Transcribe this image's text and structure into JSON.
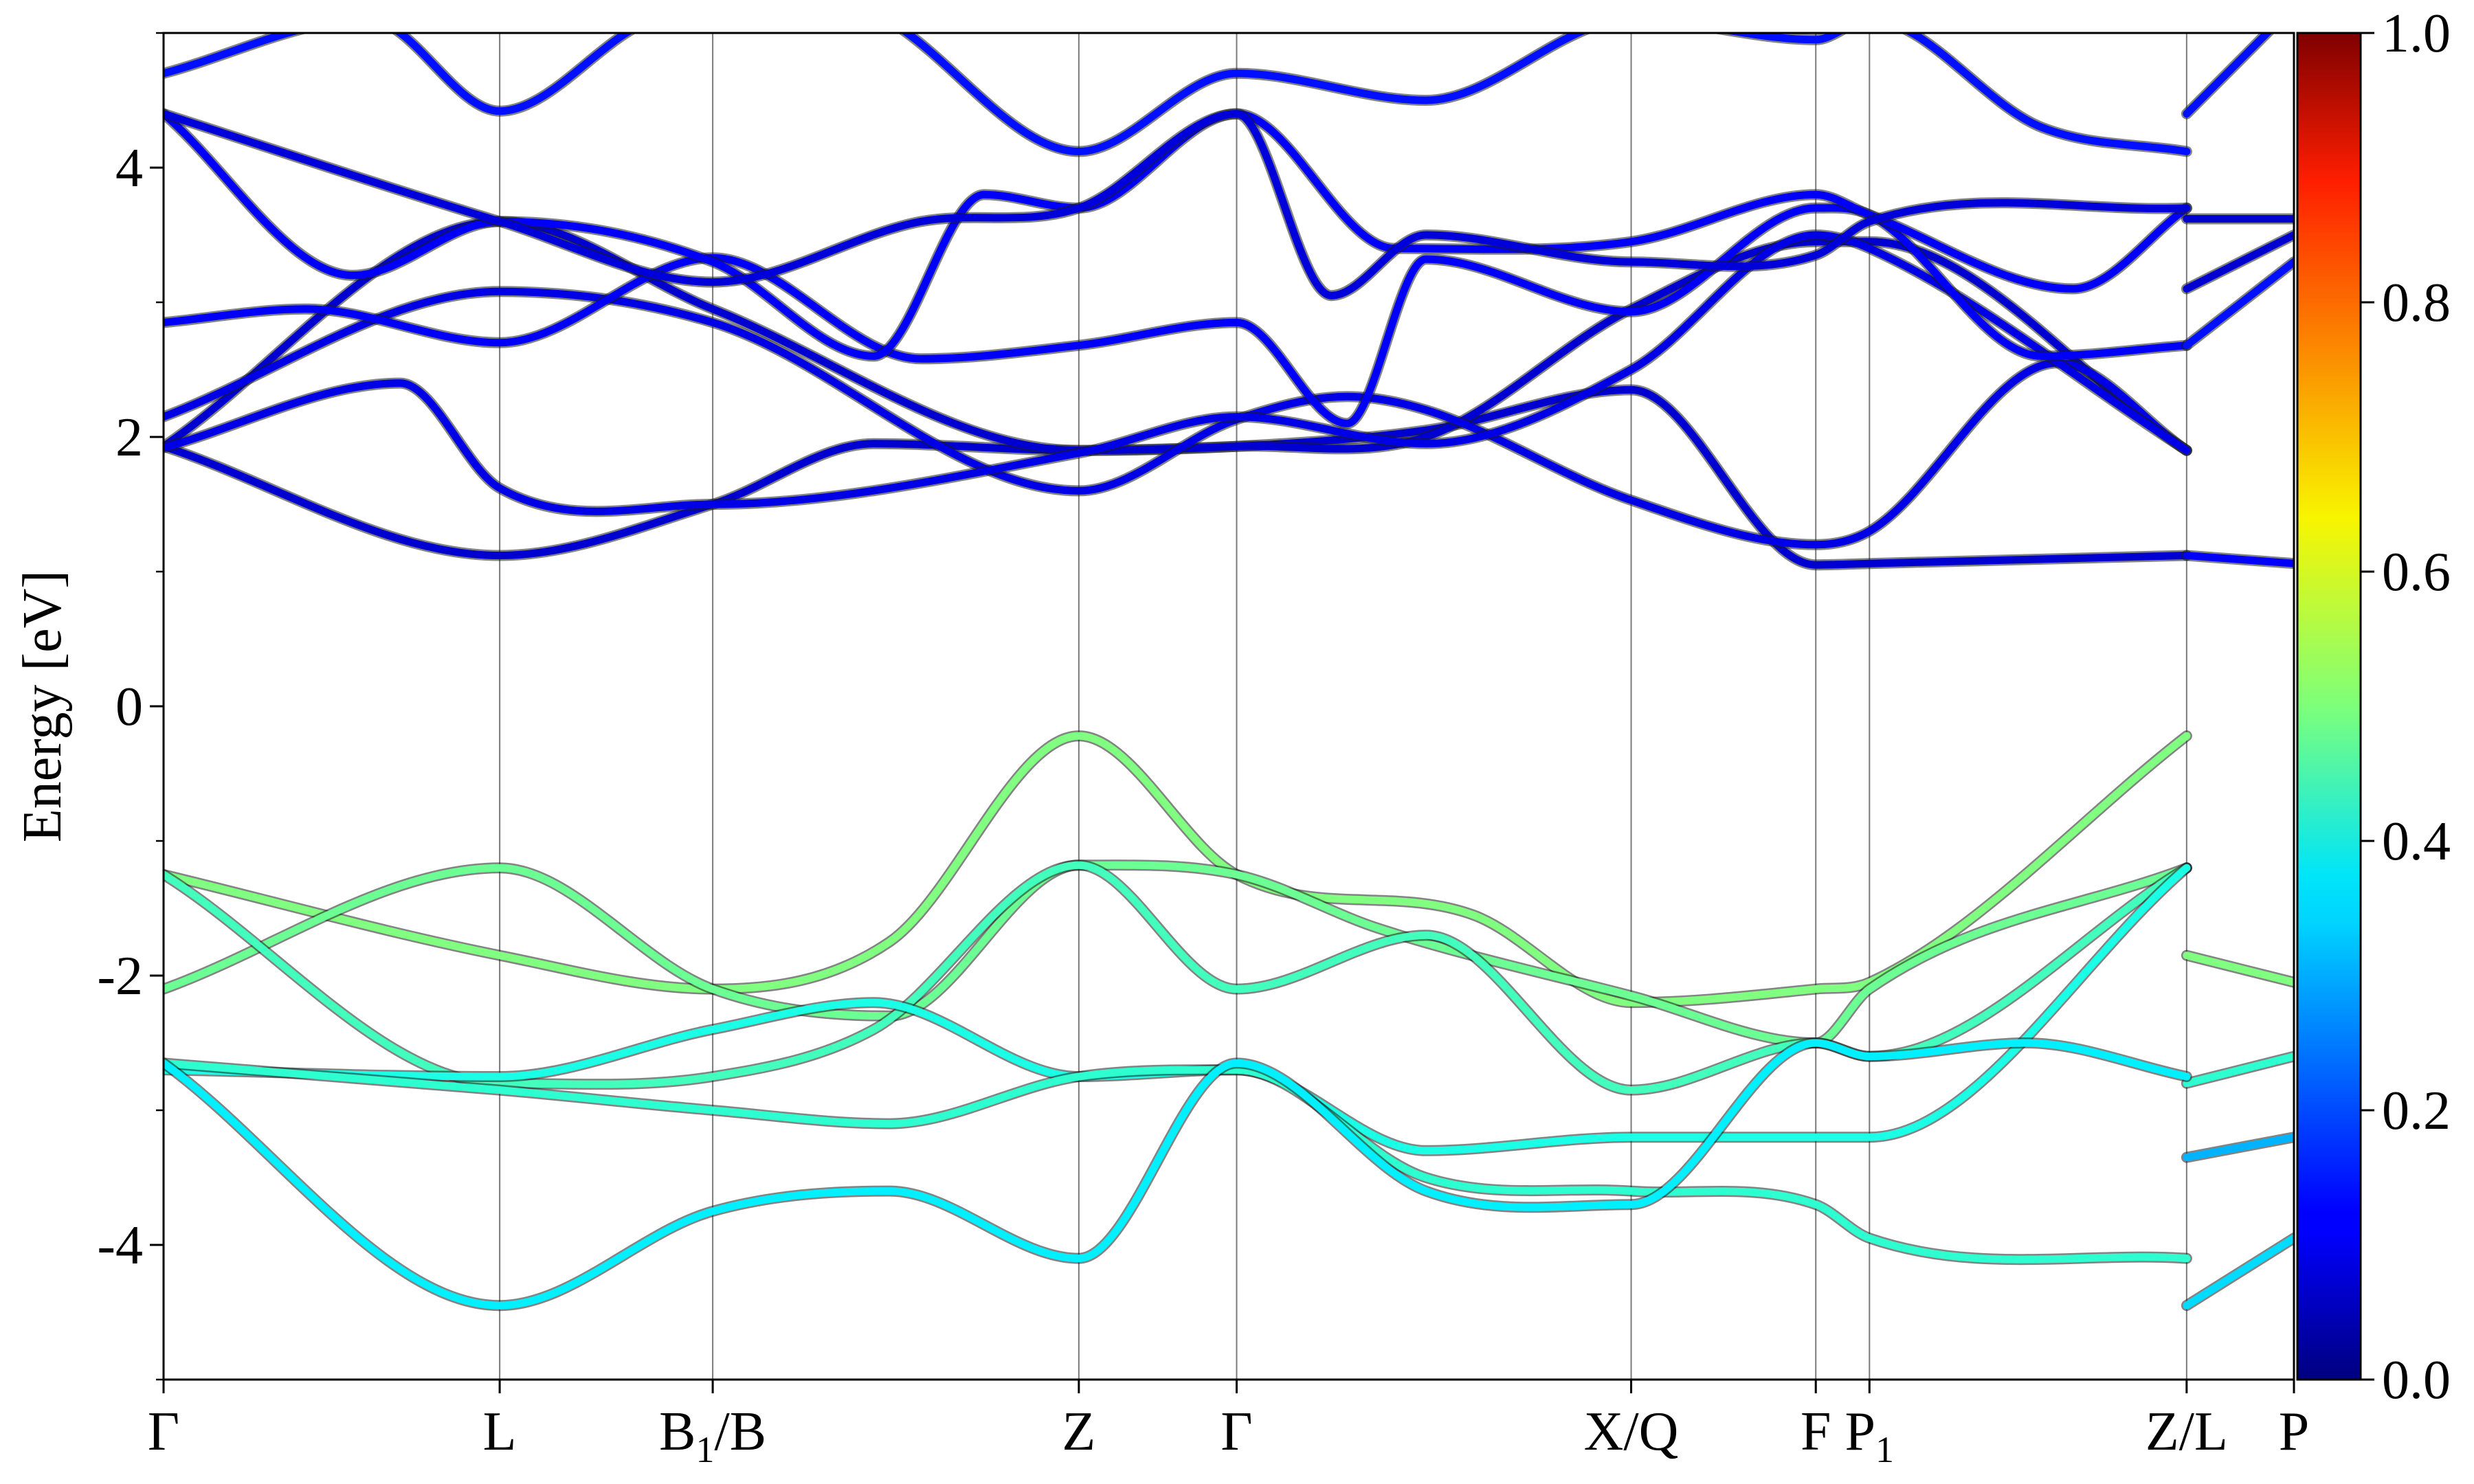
{
  "chart_data": {
    "type": "line",
    "title": "",
    "xlabel": "",
    "ylabel": "Energy [eV]",
    "ylim": [
      -5,
      5
    ],
    "y_ticks": [
      -4,
      -2,
      0,
      2,
      4
    ],
    "y_tick_labels": [
      "-4",
      "-2",
      "0",
      "2",
      "4"
    ],
    "x_range": [
      0,
      13.5
    ],
    "high_symmetry_points": [
      {
        "label": "Γ",
        "sub": "",
        "suffix": "",
        "x": 0.0
      },
      {
        "label": "L",
        "sub": "",
        "suffix": "",
        "x": 2.13
      },
      {
        "label": "B",
        "sub": "1",
        "suffix": "/B",
        "x": 3.48
      },
      {
        "label": "Z",
        "sub": "",
        "suffix": "",
        "x": 5.8
      },
      {
        "label": "Γ",
        "sub": "",
        "suffix": "",
        "x": 6.8
      },
      {
        "label": "X/Q",
        "sub": "",
        "suffix": "",
        "x": 9.3
      },
      {
        "label": "F",
        "sub": "",
        "suffix": "",
        "x": 10.47
      },
      {
        "label": "P",
        "sub": "1",
        "suffix": "",
        "x": 10.81
      },
      {
        "label": "Z/L",
        "sub": "",
        "suffix": "",
        "x": 12.82
      },
      {
        "label": "P",
        "sub": "",
        "suffix": "",
        "x": 13.5
      }
    ],
    "grid": "vertical lines at high-symmetry points",
    "colorbar": {
      "colormap": "jet",
      "range": [
        0.0,
        1.0
      ],
      "ticks": [
        0.0,
        0.2,
        0.4,
        0.6,
        0.8,
        1.0
      ],
      "tick_labels": [
        "0.0",
        "0.2",
        "0.4",
        "0.6",
        "0.8",
        "1.0"
      ]
    },
    "series": [
      {
        "weight": 0.08,
        "x": [
          0,
          2.13,
          3.48,
          4.5,
          5.8,
          6.8,
          8.0,
          9.3,
          10.47,
          10.81,
          12.82
        ],
        "y": [
          1.93,
          1.12,
          1.5,
          1.95,
          1.9,
          1.93,
          2.05,
          2.35,
          1.05,
          1.06,
          1.12
        ]
      },
      {
        "weight": 0.12,
        "x": [
          12.82,
          13.5
        ],
        "y": [
          1.12,
          1.06
        ]
      },
      {
        "weight": 0.08,
        "x": [
          0,
          2.13,
          3.48,
          5.8,
          6.8,
          8.0,
          9.3,
          10.47,
          10.81,
          12.82
        ],
        "y": [
          1.93,
          3.6,
          2.95,
          1.9,
          1.93,
          2.0,
          2.95,
          3.45,
          3.45,
          1.9
        ]
      },
      {
        "weight": 0.1,
        "x": [
          0,
          2.13,
          3.48,
          5.8,
          6.8,
          7.5,
          8.0,
          9.3,
          10.47,
          10.81,
          12.0,
          12.82
        ],
        "y": [
          2.15,
          3.08,
          2.85,
          1.6,
          2.13,
          2.3,
          2.2,
          1.53,
          1.2,
          1.3,
          2.55,
          1.9
        ]
      },
      {
        "weight": 0.1,
        "x": [
          0,
          1.5,
          2.13,
          3.48,
          5.8,
          6.8,
          8.0,
          9.3,
          10.47,
          10.81,
          12.82
        ],
        "y": [
          1.92,
          2.4,
          1.62,
          1.5,
          1.88,
          2.15,
          1.95,
          2.5,
          3.5,
          3.4,
          1.9
        ]
      },
      {
        "weight": 0.12,
        "x": [
          0,
          0.9,
          2.13,
          3.48,
          4.8,
          5.8,
          6.8,
          7.5,
          8.0,
          9.3,
          10.47,
          10.81,
          11.9,
          12.82
        ],
        "y": [
          2.85,
          2.95,
          2.7,
          3.33,
          2.58,
          2.68,
          2.85,
          2.1,
          3.32,
          2.93,
          3.7,
          3.65,
          2.6,
          2.68
        ]
      },
      {
        "weight": 0.14,
        "x": [
          12.82,
          13.5
        ],
        "y": [
          2.68,
          3.3
        ]
      },
      {
        "weight": 0.12,
        "x": [
          0,
          1.2,
          2.13,
          3.48,
          4.5,
          5.2,
          5.8,
          6.8,
          7.8,
          9.3,
          10.47,
          10.81,
          12.1,
          12.82
        ],
        "y": [
          4.4,
          3.2,
          3.6,
          3.3,
          2.6,
          3.8,
          3.7,
          4.4,
          3.4,
          3.45,
          3.8,
          3.65,
          3.1,
          3.7
        ]
      },
      {
        "weight": 0.08,
        "x": [
          12.82,
          13.5
        ],
        "y": [
          3.62,
          3.62
        ]
      },
      {
        "weight": 0.09,
        "x": [
          0,
          2.13,
          3.48,
          4.8,
          5.8,
          6.8,
          7.4,
          8.0,
          9.3,
          10.47,
          10.81,
          12.82
        ],
        "y": [
          4.4,
          3.6,
          3.15,
          3.6,
          3.7,
          4.4,
          3.05,
          3.5,
          3.3,
          3.35,
          3.6,
          3.7
        ]
      },
      {
        "weight": 0.08,
        "x": [
          12.82,
          13.5
        ],
        "y": [
          3.1,
          3.5
        ]
      },
      {
        "weight": 0.14,
        "x": [
          0,
          1.3,
          2.13,
          3.1,
          4.3,
          5.8,
          6.8,
          8.0,
          9.3,
          10.47,
          10.81,
          11.9,
          12.82
        ],
        "y": [
          4.7,
          5.1,
          4.42,
          5.1,
          5.2,
          4.12,
          4.7,
          4.5,
          5.1,
          4.95,
          5.1,
          4.3,
          4.12
        ]
      },
      {
        "weight": 0.14,
        "x": [
          12.82,
          13.5
        ],
        "y": [
          4.4,
          5.2
        ]
      },
      {
        "weight": 0.5,
        "x": [
          0,
          2.13,
          3.48,
          4.6,
          5.8,
          6.8,
          8.3,
          9.3,
          10.47,
          10.81,
          12.82
        ],
        "y": [
          -1.25,
          -1.85,
          -2.1,
          -1.75,
          -0.22,
          -1.25,
          -1.55,
          -2.2,
          -2.1,
          -2.05,
          -0.22
        ]
      },
      {
        "weight": 0.48,
        "x": [
          0,
          2.13,
          3.48,
          4.6,
          5.8,
          6.8,
          7.7,
          9.3,
          10.47,
          10.81,
          12.82
        ],
        "y": [
          -2.1,
          -1.2,
          -2.1,
          -2.3,
          -1.18,
          -1.25,
          -1.65,
          -2.15,
          -2.5,
          -2.1,
          -1.2
        ]
      },
      {
        "weight": 0.44,
        "x": [
          0,
          2.13,
          3.48,
          4.5,
          5.8,
          6.8,
          8.0,
          9.3,
          10.47,
          10.81,
          12.82
        ],
        "y": [
          -1.25,
          -2.8,
          -2.75,
          -2.4,
          -1.18,
          -2.1,
          -1.7,
          -2.85,
          -2.5,
          -2.6,
          -1.2
        ]
      },
      {
        "weight": 0.4,
        "x": [
          0,
          2.13,
          3.48,
          4.5,
          5.8,
          6.8,
          8.0,
          9.3,
          10.47,
          10.81,
          12.82
        ],
        "y": [
          -2.7,
          -2.75,
          -2.4,
          -2.2,
          -2.75,
          -2.7,
          -3.3,
          -3.2,
          -3.2,
          -3.2,
          -1.2
        ]
      },
      {
        "weight": 0.42,
        "x": [
          0,
          2.13,
          3.48,
          4.6,
          5.8,
          6.8,
          8.0,
          9.3,
          10.47,
          10.81,
          12.82
        ],
        "y": [
          -2.65,
          -2.85,
          -3.0,
          -3.1,
          -2.75,
          -2.7,
          -3.5,
          -3.6,
          -3.7,
          -3.95,
          -4.1
        ]
      },
      {
        "weight": 0.5,
        "x": [
          12.82,
          13.5
        ],
        "y": [
          -1.85,
          -2.05
        ]
      },
      {
        "weight": 0.42,
        "x": [
          12.82,
          13.5
        ],
        "y": [
          -2.8,
          -2.6
        ]
      },
      {
        "weight": 0.3,
        "x": [
          12.82,
          13.5
        ],
        "y": [
          -3.35,
          -3.2
        ]
      },
      {
        "weight": 0.36,
        "x": [
          0,
          2.13,
          3.48,
          4.6,
          5.8,
          6.8,
          8.0,
          9.3,
          10.47,
          10.81,
          11.8,
          12.82
        ],
        "y": [
          -2.65,
          -4.45,
          -3.75,
          -3.6,
          -4.1,
          -2.65,
          -3.6,
          -3.7,
          -2.5,
          -2.6,
          -2.5,
          -2.75
        ]
      },
      {
        "weight": 0.34,
        "x": [
          12.82,
          13.5
        ],
        "y": [
          -4.45,
          -3.95
        ]
      }
    ]
  }
}
